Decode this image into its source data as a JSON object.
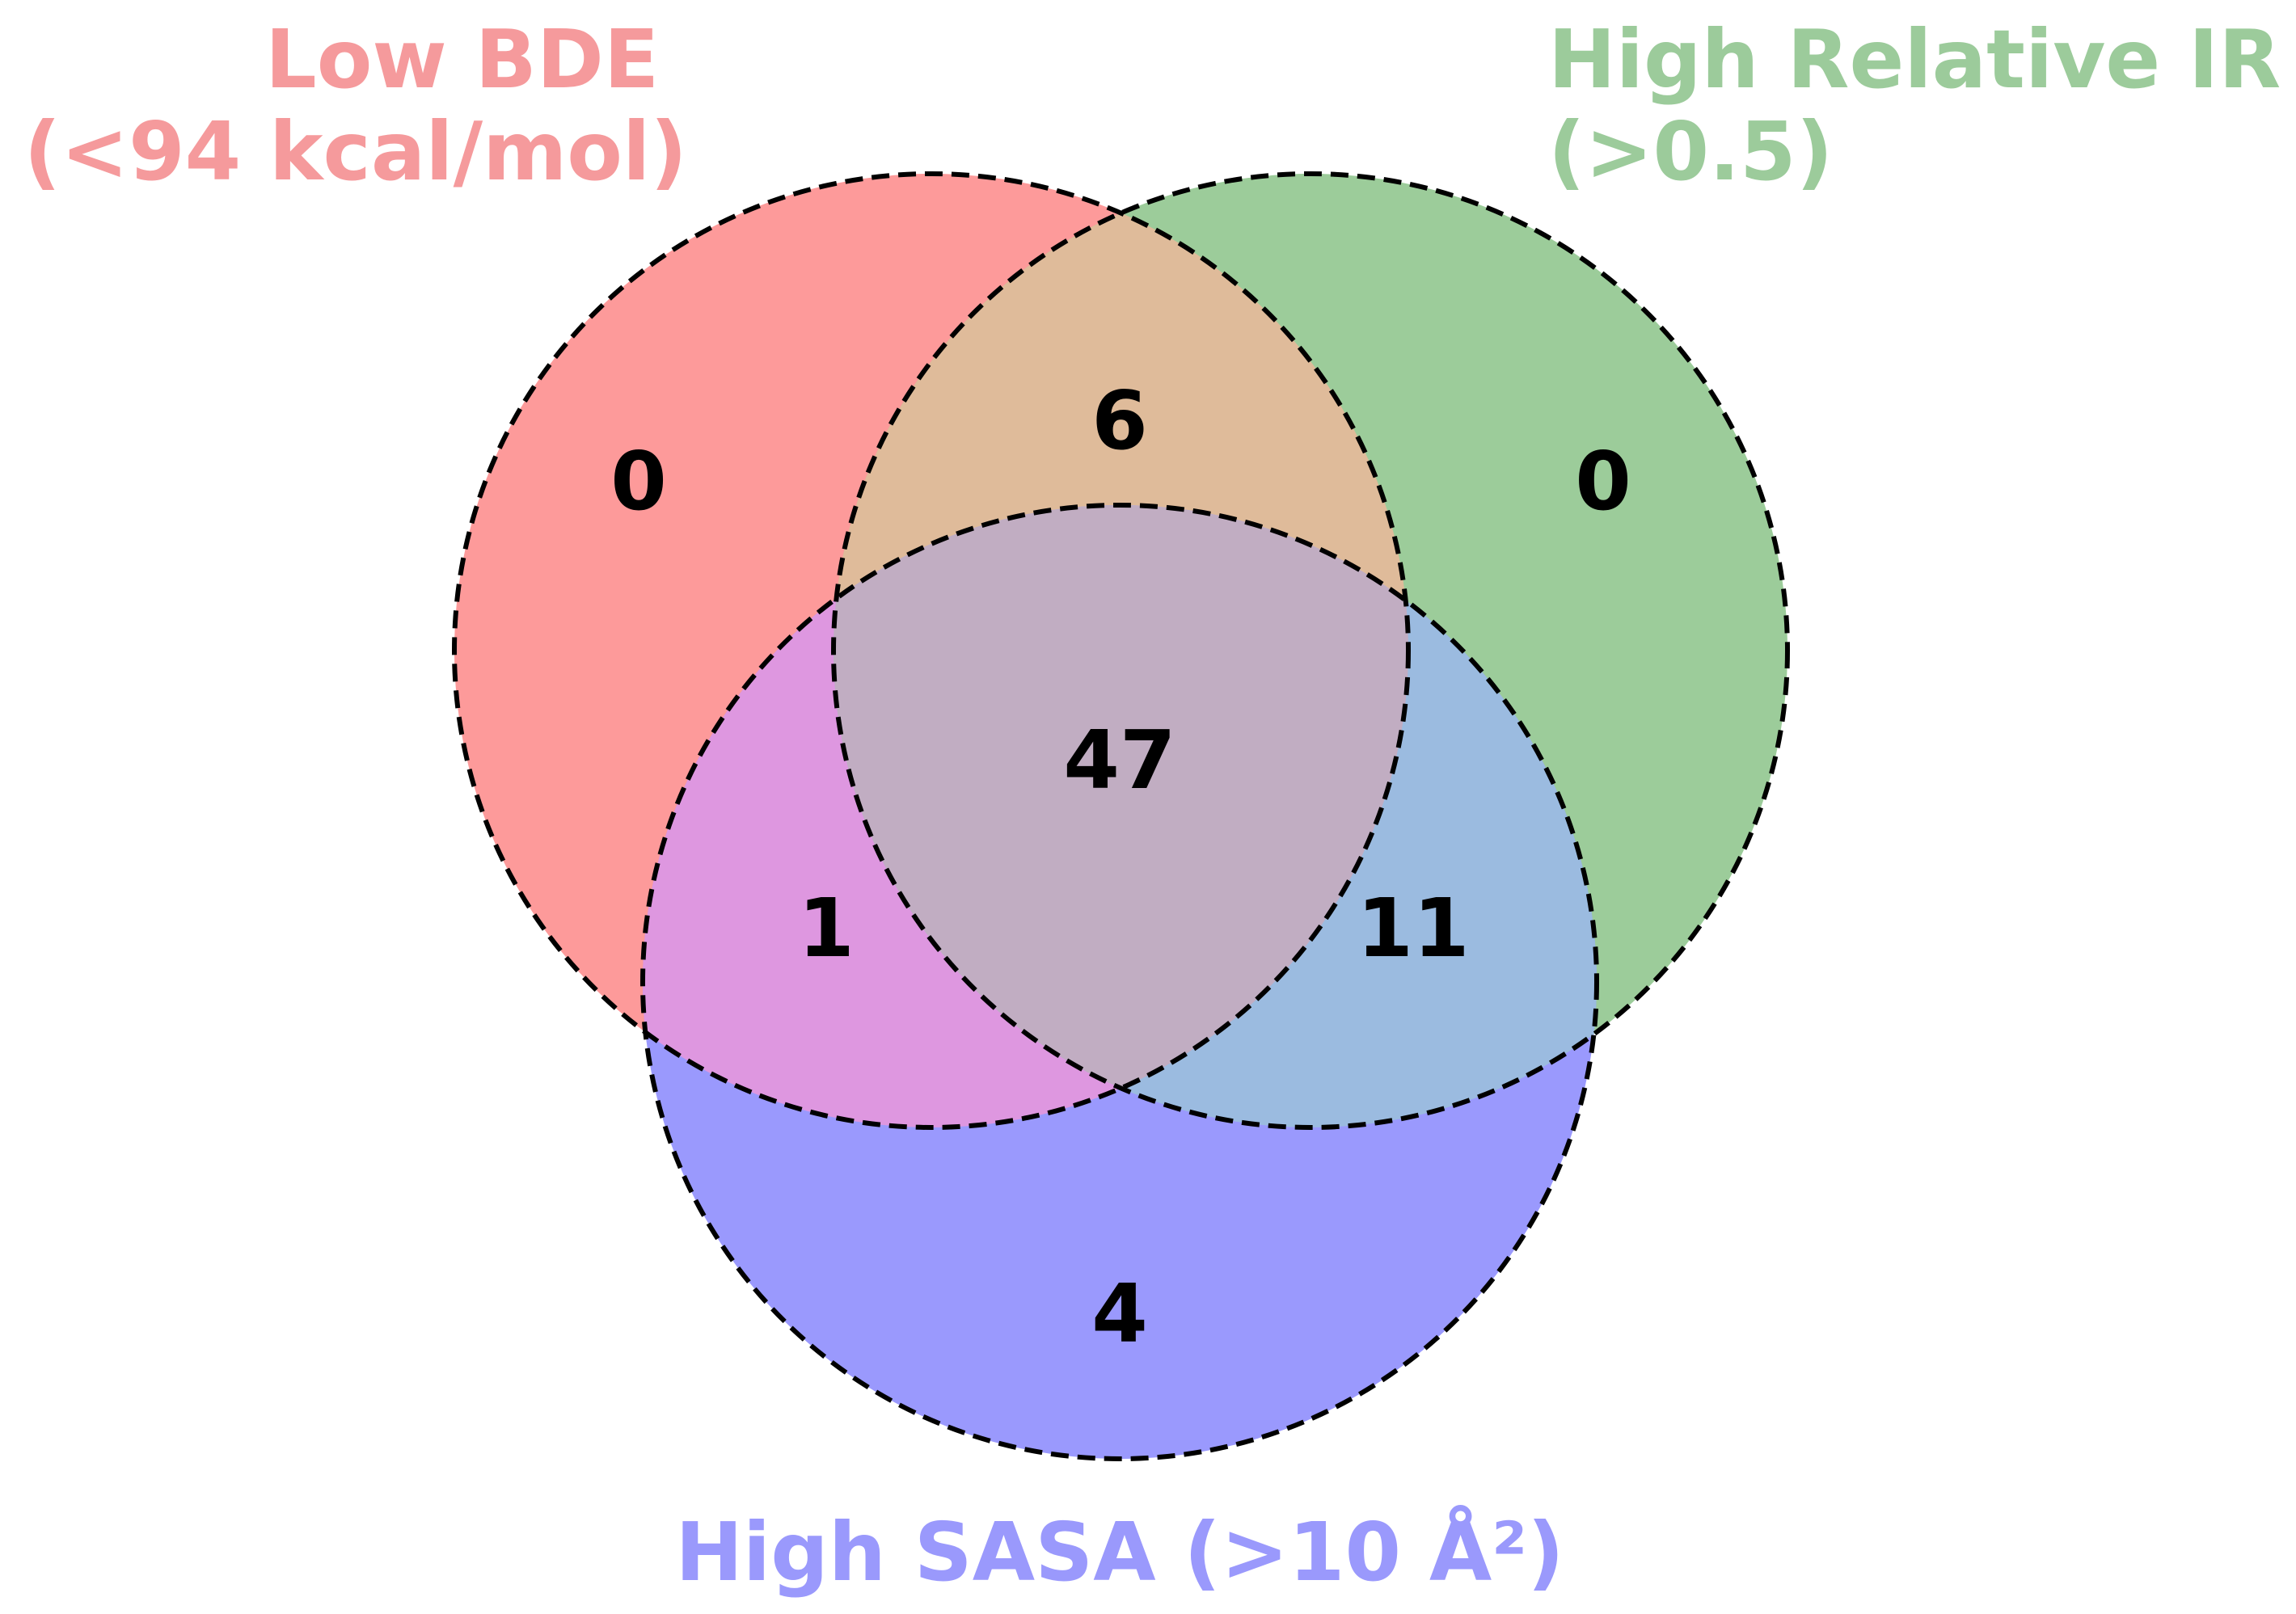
{
  "sets": {
    "bde": {
      "label_line1": "Low BDE",
      "label_line2": "(<94 kcal/mol)",
      "label_color": "#f59a9c",
      "fill": "#fd9a9a"
    },
    "ir": {
      "label_line1": "High Relative IR",
      "label_line2": "(>0.5)",
      "label_color": "#9ccb9b",
      "fill": "#9ccc9a"
    },
    "sasa": {
      "label": "High SASA (>10 Å²)",
      "label_color": "#9a99fc",
      "fill": "#9a99fd"
    }
  },
  "regions": {
    "bde_only": "0",
    "ir_only": "0",
    "sasa_only": "4",
    "bde_ir": "6",
    "bde_sasa": "1",
    "ir_sasa": "11",
    "all_three": "47"
  },
  "region_colors": {
    "bde_ir": "#dfbb9a",
    "bde_sasa": "#de97e0",
    "ir_sasa": "#9bbbe0",
    "all_three": "#c1adc2"
  },
  "outline": {
    "color": "#000000",
    "style": "dashed"
  }
}
